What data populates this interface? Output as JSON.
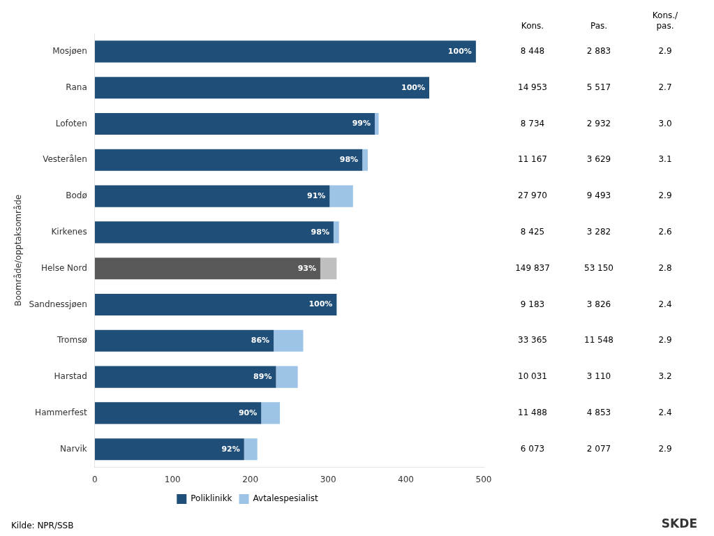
{
  "chart_data": {
    "type": "bar",
    "orientation": "horizontal",
    "stacked": true,
    "categories": [
      "Mosjøen",
      "Rana",
      "Lofoten",
      "Vesterålen",
      "Bodø",
      "Kirkenes",
      "Helse Nord",
      "Sandnessjøen",
      "Tromsø",
      "Harstad",
      "Hammerfest",
      "Narvik"
    ],
    "series": [
      {
        "name": "Poliklinikk",
        "color": "#1F4E79",
        "colors": [
          "#1F4E79",
          "#1F4E79",
          "#1F4E79",
          "#1F4E79",
          "#1F4E79",
          "#1F4E79",
          "#595959",
          "#1F4E79",
          "#1F4E79",
          "#1F4E79",
          "#1F4E79",
          "#1F4E79"
        ],
        "values": [
          490,
          430,
          360,
          344,
          302,
          307,
          290,
          311,
          230,
          233,
          214,
          192
        ],
        "share_labels": [
          "100%",
          "100%",
          "99%",
          "98%",
          "91%",
          "98%",
          "93%",
          "100%",
          "86%",
          "89%",
          "90%",
          "92%"
        ]
      },
      {
        "name": "Avtalespesialist",
        "color": "#9DC3E6",
        "colors": [
          "#9DC3E6",
          "#9DC3E6",
          "#9DC3E6",
          "#9DC3E6",
          "#9DC3E6",
          "#9DC3E6",
          "#BFBFBF",
          "#9DC3E6",
          "#9DC3E6",
          "#9DC3E6",
          "#9DC3E6",
          "#9DC3E6"
        ],
        "values": [
          0,
          0,
          5,
          7,
          30,
          7,
          21,
          0,
          38,
          28,
          24,
          17
        ]
      }
    ],
    "ylabel": "Boområde/opptaksområde",
    "xlim": [
      0,
      500
    ],
    "xticks": [
      0,
      100,
      200,
      300,
      400,
      500
    ],
    "grid": false,
    "legend": "bottom",
    "table": [
      {
        "header": "Kons.",
        "values": [
          8448,
          14953,
          8734,
          11167,
          27970,
          8425,
          149837,
          9183,
          33365,
          10031,
          11488,
          6073
        ],
        "value_labels": [
          "8 448",
          "14 953",
          "8 734",
          "11 167",
          "27 970",
          "8 425",
          "149 837",
          "9 183",
          "33 365",
          "10 031",
          "11 488",
          "6 073"
        ]
      },
      {
        "header": "Pas.",
        "values": [
          2883,
          5517,
          2932,
          3629,
          9493,
          3282,
          53150,
          3826,
          11548,
          3110,
          4853,
          2077
        ],
        "value_labels": [
          "2 883",
          "5 517",
          "2 932",
          "3 629",
          "9 493",
          "3 282",
          "53 150",
          "3 826",
          "11 548",
          "3 110",
          "4 853",
          "2 077"
        ]
      },
      {
        "header": "Kons./\npas.",
        "values": [
          2.9,
          2.7,
          3.0,
          3.1,
          2.9,
          2.6,
          2.8,
          2.4,
          2.9,
          3.2,
          2.4,
          2.9
        ],
        "value_labels": [
          "2.9",
          "2.7",
          "3.0",
          "3.1",
          "2.9",
          "2.6",
          "2.8",
          "2.4",
          "2.9",
          "3.2",
          "2.4",
          "2.9"
        ]
      }
    ],
    "annotations": [
      "Kilde: NPR/SSB",
      "SKDE"
    ]
  }
}
